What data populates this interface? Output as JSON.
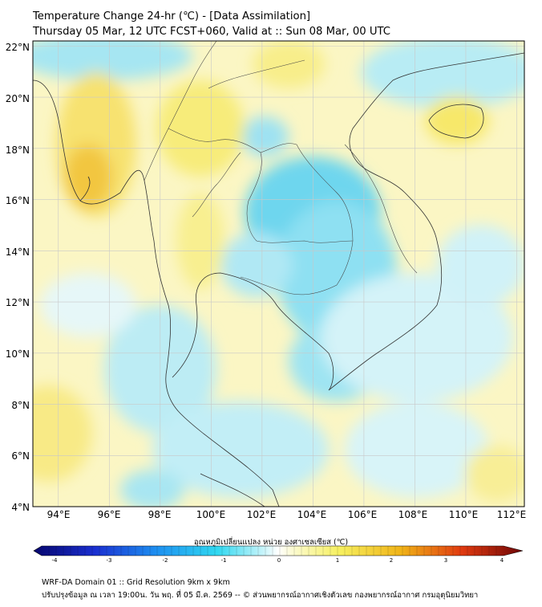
{
  "title": {
    "line1": "Temperature Change 24-hr (℃) - [Data Assimilation]",
    "line2": "Thursday 05 Mar, 12 UTC FCST+060, Valid at :: Sun 08 Mar, 00 UTC"
  },
  "map": {
    "lat_labels": [
      "22°N",
      "20°N",
      "18°N",
      "16°N",
      "14°N",
      "12°N",
      "10°N",
      "8°N",
      "6°N",
      "4°N"
    ],
    "lon_labels": [
      "94°E",
      "96°E",
      "98°E",
      "100°E",
      "102°E",
      "104°E",
      "106°E",
      "108°E",
      "110°E",
      "112°E"
    ],
    "lat_range": [
      4,
      22.2
    ],
    "lon_range": [
      93,
      112.3
    ]
  },
  "colorbar": {
    "label": "อุณหภูมิเปลี่ยนแปลง หน่วย องศาเซลเซียส (℃)",
    "ticks": [
      "-4",
      "-3",
      "-2",
      "-1",
      "0",
      "1",
      "2",
      "3",
      "4"
    ],
    "range": [
      -4,
      4
    ],
    "colors": {
      "-4": "#06066e",
      "-3": "#1a2fd0",
      "-2": "#1e8ff0",
      "-1": "#30d8f0",
      "0": "#ffffff",
      "1": "#f6f060",
      "2": "#f0b418",
      "3": "#e03a10",
      "4": "#6e0606"
    }
  },
  "footer": {
    "line1": "WRF-DA Domain 01 :: Grid Resolution 9km x 9km",
    "line2": "ปรับปรุงข้อมูล ณ เวลา 19:00น. วัน พฤ. ที่ 05 มี.ค. 2569 -- © ส่วนพยากรณ์อากาศเชิงตัวเลข กองพยากรณ์อากาศ กรมอุตุนิยมวิทยา"
  }
}
